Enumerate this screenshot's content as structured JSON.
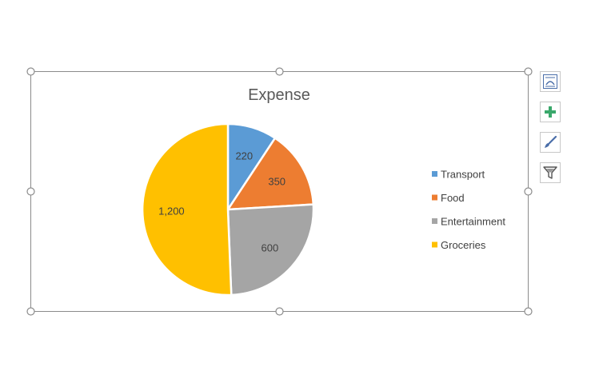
{
  "chart_data": {
    "type": "pie",
    "title": "Expense",
    "categories": [
      "Transport",
      "Food",
      "Entertainment",
      "Groceries"
    ],
    "values": [
      220,
      350,
      600,
      1200
    ],
    "value_labels": [
      "220",
      "350",
      "600",
      "1,200"
    ],
    "colors": [
      "#5B9BD5",
      "#ED7D31",
      "#A5A5A5",
      "#FFC000"
    ],
    "legend_position": "right",
    "start_angle_deg": 0,
    "direction": "clockwise"
  },
  "side_toolbar": {
    "buttons": [
      {
        "name": "layout-options-button",
        "icon": "layout-options-icon"
      },
      {
        "name": "chart-elements-button",
        "icon": "plus-icon"
      },
      {
        "name": "chart-styles-button",
        "icon": "paintbrush-icon"
      },
      {
        "name": "chart-filters-button",
        "icon": "filter-icon"
      }
    ]
  },
  "colors": {
    "frame": "#8c8c8c",
    "handle_fill": "#ffffff",
    "plus_icon": "#3aa86b"
  }
}
